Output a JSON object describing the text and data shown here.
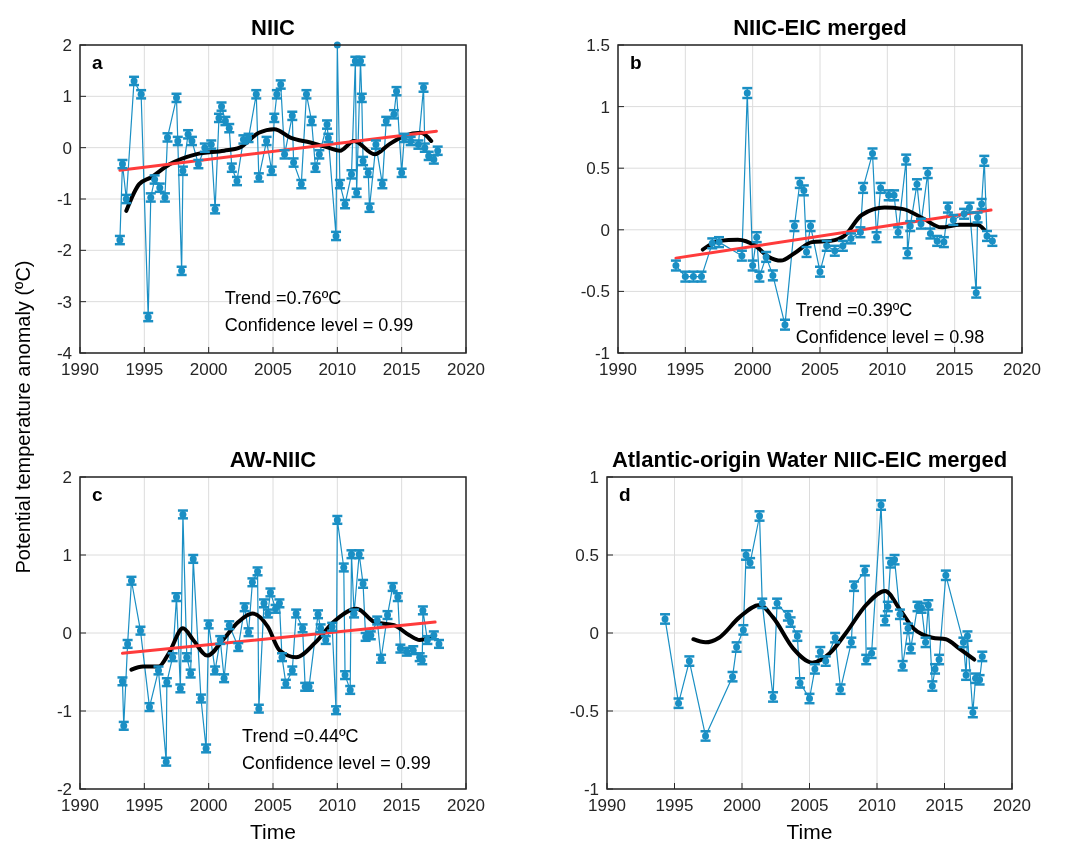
{
  "chart_data": [
    {
      "type": "line",
      "title": "NIIC",
      "ylabel": "Potential temperature  anomaly (ºC)",
      "xlim": [
        1990,
        2020
      ],
      "xticks": [
        1990,
        1995,
        2000,
        2005,
        2010,
        2015,
        2020
      ],
      "ylim": [
        -4,
        2
      ],
      "yticks": [
        -4,
        -3,
        -2,
        -1,
        0,
        1,
        2
      ],
      "grid": true,
      "annotations": [
        "a",
        "Trend =0.76ºC",
        "Confidence level = 0.99"
      ],
      "series": [
        {
          "color": "#1a8fc4",
          "marker": "circle",
          "x": [
            1993.1,
            1993.3,
            1993.6,
            1994.2,
            1994.75,
            1995.3,
            1995.5,
            1995.8,
            1996.2,
            1996.6,
            1996.8,
            1997.5,
            1997.6,
            1997.9,
            1998.0,
            1998.4,
            1998.7,
            1999.2,
            1999.7,
            2000.2,
            2000.5,
            2000.8,
            2001.0,
            2001.3,
            2001.6,
            2001.8,
            2002.2,
            2002.7,
            2003.1,
            2003.7,
            2003.9,
            2004.5,
            2004.9,
            2005.1,
            2005.3,
            2005.6,
            2005.9,
            2006.5,
            2006.6,
            2007.2,
            2007.6,
            2008.0,
            2008.3,
            2008.6,
            2009.2,
            2009.3,
            2009.9,
            2010.0,
            2010.2,
            2010.6,
            2011.1,
            2011.4,
            2011.5,
            2011.8,
            2011.9,
            2012.0,
            2012.4,
            2012.5,
            2013.0,
            2013.5,
            2013.8,
            2014.4,
            2014.6,
            2015.0,
            2015.2,
            2015.7,
            2016.3,
            2016.7,
            2016.8,
            2017.1,
            2017.5,
            2017.8
          ],
          "values": [
            -1.8,
            -0.32,
            -1.0,
            1.3,
            1.04,
            -3.3,
            -0.97,
            -0.62,
            -0.78,
            -0.97,
            0.2,
            0.97,
            0.13,
            -2.4,
            -0.45,
            0.26,
            0.13,
            -0.32,
            0,
            0.06,
            -1.2,
            0.58,
            0.8,
            0.52,
            0.38,
            -0.39,
            -0.65,
            0.16,
            0.19,
            1.04,
            -0.58,
            0.13,
            -0.45,
            0.58,
            1.04,
            1.23,
            -0.13,
            0.62,
            -0.29,
            -0.71,
            1.04,
            0.52,
            -0.39,
            -0.13,
            0.45,
            0.19,
            -1.72,
            2.0,
            -0.71,
            -1.1,
            -0.52,
            1.69,
            -0.88,
            1.69,
            0.97,
            -0.26,
            -0.49,
            -1.17,
            0.06,
            -0.71,
            0.52,
            0.65,
            1.1,
            -0.49,
            0.19,
            0.13,
            0.06,
            1.17,
            0,
            -0.16,
            -0.23,
            -0.06
          ],
          "errors": [
            0.08,
            0.08,
            0.08,
            0.08,
            0.08,
            0.08,
            0.08,
            0.08,
            0.08,
            0.08,
            0.08,
            0.08,
            0.08,
            0.08,
            0.08,
            0.08,
            0.08,
            0.08,
            0.08,
            0.08,
            0.08,
            0.08,
            0.08,
            0.08,
            0.08,
            0.08,
            0.08,
            0.08,
            0.08,
            0.08,
            0.08,
            0.08,
            0.08,
            0.08,
            0.08,
            0.08,
            0.08,
            0.08,
            0.08,
            0.08,
            0.08,
            0.08,
            0.08,
            0.08,
            0.08,
            0.08,
            0.08,
            null,
            0.08,
            0.08,
            0.08,
            0.08,
            0.08,
            0.08,
            0.08,
            0.08,
            0.08,
            0.08,
            0.08,
            0.08,
            0.08,
            0.08,
            0.08,
            0.08,
            0.08,
            0.08,
            0.08,
            0.08,
            0.08,
            0.08,
            0.08,
            0.08
          ]
        },
        {
          "color": "#000000",
          "marker": "none",
          "x": [
            1993.6,
            1994.6,
            1995.5,
            1997.0,
            1999.0,
            2001.2,
            2002.4,
            2003.9,
            2005.1,
            2006.4,
            2007.9,
            2009.3,
            2010.2,
            2011.3,
            2012.9,
            2014.0,
            2015.2,
            2016.5,
            2017.3
          ],
          "values": [
            -1.23,
            -0.71,
            -0.58,
            -0.32,
            -0.13,
            -0.06,
            0,
            0.29,
            0.36,
            0.19,
            0.1,
            0,
            -0.06,
            0.13,
            -0.13,
            0.06,
            0.23,
            0.29,
            0.13
          ]
        },
        {
          "color": "#ff3b3b",
          "marker": "none",
          "x": [
            1993.1,
            2017.7
          ],
          "values": [
            -0.44,
            0.32
          ]
        }
      ]
    },
    {
      "type": "line",
      "title": "NIIC-EIC merged",
      "xlim": [
        1990,
        2020
      ],
      "xticks": [
        1990,
        1995,
        2000,
        2005,
        2010,
        2015,
        2020
      ],
      "ylim": [
        -1,
        1.5
      ],
      "yticks": [
        -1,
        -0.5,
        0,
        0.5,
        1,
        1.5
      ],
      "grid": true,
      "annotations": [
        "b",
        "Trend =0.39ºC",
        "Confidence level = 0.98"
      ],
      "series": [
        {
          "color": "#1a8fc4",
          "marker": "circle",
          "x": [
            1994.3,
            1995.0,
            1995.6,
            1996.2,
            1997.0,
            1997.5,
            1999.2,
            1999.6,
            2000.0,
            2000.3,
            2000.5,
            2001.0,
            2001.5,
            2002.4,
            2003.1,
            2003.5,
            2003.8,
            2004.0,
            2004.3,
            2005.0,
            2005.5,
            2006.1,
            2006.7,
            2007.3,
            2008.0,
            2008.2,
            2008.9,
            2009.2,
            2009.5,
            2010.1,
            2010.5,
            2010.8,
            2011.4,
            2011.5,
            2011.7,
            2012.2,
            2012.5,
            2013.0,
            2013.2,
            2013.7,
            2014.2,
            2014.5,
            2014.9,
            2015.7,
            2016.1,
            2016.6,
            2016.7,
            2017.0,
            2017.2,
            2017.4,
            2017.8
          ],
          "values": [
            -0.29,
            -0.38,
            -0.38,
            -0.38,
            -0.11,
            -0.1,
            -0.21,
            1.11,
            -0.29,
            -0.06,
            -0.38,
            -0.22,
            -0.37,
            -0.77,
            0.03,
            0.38,
            0.32,
            -0.18,
            0.03,
            -0.34,
            -0.13,
            -0.17,
            -0.13,
            -0.07,
            -0.02,
            0.34,
            0.62,
            -0.06,
            0.34,
            0.28,
            0.28,
            -0.02,
            0.57,
            -0.19,
            0.03,
            0.37,
            0.05,
            0.46,
            -0.03,
            -0.09,
            -0.1,
            0.18,
            0.08,
            0.13,
            0.18,
            -0.51,
            0.1,
            0.21,
            0.56,
            -0.05,
            -0.09
          ],
          "errors": [
            0.04,
            0.04,
            0.04,
            0.04,
            0.04,
            0.04,
            0.04,
            0.04,
            0.04,
            0.04,
            0.04,
            0.04,
            0.04,
            0.04,
            0.04,
            0.04,
            0.04,
            0.04,
            0.04,
            0.04,
            0.04,
            0.04,
            0.04,
            0.04,
            0.04,
            0.04,
            0.04,
            0.04,
            0.04,
            0.04,
            0.04,
            0.04,
            0.04,
            0.04,
            0.04,
            0.04,
            0.04,
            0.04,
            0.04,
            0.04,
            0.04,
            0.04,
            0.04,
            0.04,
            0.04,
            0.04,
            0.04,
            0.04,
            0.04,
            0.04,
            0.04
          ]
        },
        {
          "color": "#000000",
          "marker": "none",
          "x": [
            1996.3,
            1997.5,
            1998.9,
            2000.2,
            2001.2,
            2002.1,
            2003.1,
            2004.4,
            2005.8,
            2006.8,
            2008.1,
            2009.8,
            2011.1,
            2012.7,
            2014.0,
            2015.4,
            2016.7,
            2017.2
          ],
          "values": [
            -0.16,
            -0.09,
            -0.08,
            -0.13,
            -0.22,
            -0.25,
            -0.19,
            -0.1,
            -0.09,
            -0.05,
            0.12,
            0.18,
            0.17,
            0.09,
            0.02,
            0.04,
            0.04,
            0
          ]
        },
        {
          "color": "#ff3b3b",
          "marker": "none",
          "x": [
            1994.3,
            2017.7
          ],
          "values": [
            -0.23,
            0.16
          ]
        }
      ]
    },
    {
      "type": "line",
      "title": "AW-NIIC",
      "xlabel": "Time",
      "xlim": [
        1990,
        2020
      ],
      "xticks": [
        1990,
        1995,
        2000,
        2005,
        2010,
        2015,
        2020
      ],
      "ylim": [
        -2,
        2
      ],
      "yticks": [
        -2,
        -1,
        0,
        1,
        2
      ],
      "grid": true,
      "annotations": [
        "c",
        "Trend =0.44ºC",
        "Confidence level = 0.99"
      ],
      "series": [
        {
          "color": "#1a8fc4",
          "marker": "circle",
          "x": [
            1993.3,
            1993.4,
            1993.7,
            1994.0,
            1994.7,
            1995.4,
            1996.1,
            1996.7,
            1996.75,
            1997.2,
            1997.5,
            1997.8,
            1998.0,
            1998.3,
            1998.6,
            1998.8,
            1999.4,
            1999.8,
            2000.0,
            2000.5,
            2000.9,
            2001.2,
            2001.6,
            2002.3,
            2002.8,
            2003.1,
            2003.4,
            2003.8,
            2003.9,
            2004.3,
            2004.6,
            2004.8,
            2005.2,
            2005.5,
            2005.7,
            2006.0,
            2006.5,
            2006.8,
            2007.3,
            2007.5,
            2007.8,
            2008.5,
            2008.7,
            2009.1,
            2009.6,
            2009.9,
            2010.0,
            2010.5,
            2010.6,
            2011.0,
            2011.1,
            2011.3,
            2011.7,
            2012.0,
            2012.2,
            2012.6,
            2013.1,
            2013.4,
            2013.9,
            2014.3,
            2014.7,
            2014.9,
            2015.4,
            2015.9,
            2016.4,
            2016.6,
            2016.65,
            2017.0,
            2017.5,
            2017.9
          ],
          "values": [
            -0.62,
            -1.19,
            -0.14,
            0.67,
            0.03,
            -0.95,
            -0.48,
            -1.65,
            -0.63,
            -0.31,
            0.46,
            -0.71,
            1.52,
            -0.31,
            -0.52,
            0.95,
            -0.84,
            -1.48,
            0.11,
            -0.48,
            -0.09,
            -0.58,
            0.1,
            -0.18,
            0.33,
            0.01,
            0.65,
            0.79,
            -0.97,
            0.38,
            0.25,
            0.52,
            0.31,
            0.38,
            -0.31,
            -0.65,
            -0.48,
            0.25,
            0.06,
            -0.69,
            -0.69,
            0.24,
            0.06,
            -0.09,
            0.08,
            -0.99,
            1.45,
            0.84,
            -0.54,
            -0.73,
            1.01,
            0.25,
            1.01,
            0.63,
            -0.05,
            -0.03,
            0.16,
            -0.33,
            0.23,
            0.59,
            0.46,
            -0.2,
            -0.24,
            -0.22,
            -0.31,
            -0.35,
            0.29,
            -0.09,
            -0.03,
            -0.14
          ],
          "errors": [
            0.05,
            0.05,
            0.05,
            0.05,
            0.05,
            0.05,
            0.05,
            0.05,
            0.05,
            0.05,
            0.05,
            0.05,
            0.05,
            0.05,
            0.05,
            0.05,
            0.05,
            0.05,
            0.05,
            0.05,
            0.05,
            0.05,
            0.05,
            0.05,
            0.05,
            0.05,
            0.05,
            0.05,
            0.05,
            0.05,
            0.05,
            0.05,
            0.05,
            0.05,
            0.05,
            0.05,
            0.05,
            0.05,
            0.05,
            0.05,
            0.05,
            0.05,
            0.05,
            0.05,
            0.05,
            0.05,
            0.05,
            0.05,
            0.05,
            0.05,
            0.05,
            0.05,
            0.05,
            0.05,
            0.05,
            0.05,
            0.05,
            0.05,
            0.05,
            0.05,
            0.05,
            0.05,
            0.05,
            0.05,
            0.05,
            0.05,
            0.05,
            0.05,
            0.05,
            0.05
          ]
        },
        {
          "color": "#000000",
          "marker": "none",
          "x": [
            1994.0,
            1994.9,
            1996.1,
            1996.9,
            1998.0,
            1998.8,
            1999.9,
            2001.1,
            2002.3,
            2003.4,
            2004.6,
            2005.5,
            2006.8,
            2008.3,
            2009.7,
            2011.5,
            2012.9,
            2014.4,
            2015.6,
            2016.4,
            2017.2
          ],
          "values": [
            -0.47,
            -0.43,
            -0.43,
            -0.26,
            0.06,
            -0.09,
            -0.29,
            -0.09,
            0.14,
            0.25,
            0.08,
            -0.22,
            -0.31,
            -0.12,
            0.14,
            0.31,
            0.14,
            0.1,
            -0.03,
            -0.09,
            -0.06
          ]
        },
        {
          "color": "#ff3b3b",
          "marker": "none",
          "x": [
            1993.3,
            2017.6
          ],
          "values": [
            -0.26,
            0.14
          ]
        }
      ]
    },
    {
      "type": "line",
      "title": "Atlantic-origin Water NIIC-EIC merged",
      "xlabel": "Time",
      "xlim": [
        1990,
        2020
      ],
      "xticks": [
        1990,
        1995,
        2000,
        2005,
        2010,
        2015,
        2020
      ],
      "ylim": [
        -1,
        1
      ],
      "yticks": [
        -1,
        -0.5,
        0,
        0.5,
        1
      ],
      "grid": true,
      "annotations": [
        "d"
      ],
      "series": [
        {
          "color": "#1a8fc4",
          "marker": "circle",
          "x": [
            1994.3,
            1995.3,
            1996.1,
            1997.3,
            1999.3,
            1999.6,
            2000.1,
            2000.3,
            2000.6,
            2001.3,
            2001.5,
            2002.3,
            2002.6,
            2003.4,
            2003.6,
            2004.1,
            2004.3,
            2005.0,
            2005.4,
            2005.8,
            2006.2,
            2006.9,
            2007.3,
            2008.1,
            2008.3,
            2009.1,
            2009.2,
            2009.6,
            2010.3,
            2010.6,
            2010.8,
            2011.0,
            2011.3,
            2011.7,
            2011.9,
            2012.3,
            2012.5,
            2013.0,
            2013.3,
            2013.6,
            2013.8,
            2014.1,
            2014.3,
            2014.6,
            2015.1,
            2016.4,
            2016.6,
            2016.7,
            2017.1,
            2017.3,
            2017.6,
            2017.8
          ],
          "values": [
            0.09,
            -0.45,
            -0.18,
            -0.66,
            -0.28,
            -0.09,
            0.02,
            0.5,
            0.45,
            0.75,
            0.19,
            -0.41,
            0.19,
            0.11,
            0.07,
            -0.02,
            -0.32,
            -0.42,
            -0.23,
            -0.12,
            -0.18,
            -0.03,
            -0.36,
            -0.06,
            0.3,
            0.4,
            -0.17,
            -0.13,
            0.82,
            0.08,
            0.17,
            0.45,
            0.47,
            0.12,
            -0.21,
            0.03,
            -0.1,
            0.17,
            0.16,
            -0.06,
            0.18,
            -0.34,
            -0.23,
            -0.17,
            0.37,
            -0.06,
            -0.27,
            -0.02,
            -0.51,
            -0.29,
            -0.3,
            -0.15
          ],
          "errors": [
            0.03,
            0.03,
            0.03,
            0.03,
            0.03,
            0.03,
            0.03,
            0.03,
            0.03,
            0.03,
            0.03,
            0.03,
            0.03,
            0.03,
            0.03,
            0.03,
            0.03,
            0.03,
            0.03,
            0.03,
            0.03,
            0.03,
            0.03,
            0.03,
            0.03,
            0.03,
            0.03,
            0.03,
            0.03,
            0.03,
            0.03,
            0.03,
            0.03,
            0.03,
            0.03,
            0.03,
            0.03,
            0.03,
            0.03,
            0.03,
            0.03,
            0.03,
            0.03,
            0.03,
            0.03,
            0.03,
            0.03,
            0.03,
            0.03,
            0.03,
            0.03,
            0.03
          ]
        },
        {
          "color": "#000000",
          "marker": "none",
          "x": [
            1996.4,
            1997.3,
            1998.3,
            1999.8,
            2001.3,
            2002.3,
            2003.8,
            2005.2,
            2006.5,
            2007.7,
            2009.2,
            2010.6,
            2011.7,
            2012.7,
            2014.1,
            2015.1,
            2016.1,
            2017.2
          ],
          "values": [
            -0.04,
            -0.06,
            -0.03,
            0.1,
            0.18,
            0.1,
            -0.1,
            -0.19,
            -0.13,
            0,
            0.18,
            0.27,
            0.15,
            0.03,
            -0.03,
            -0.04,
            -0.1,
            -0.17
          ]
        }
      ]
    }
  ]
}
